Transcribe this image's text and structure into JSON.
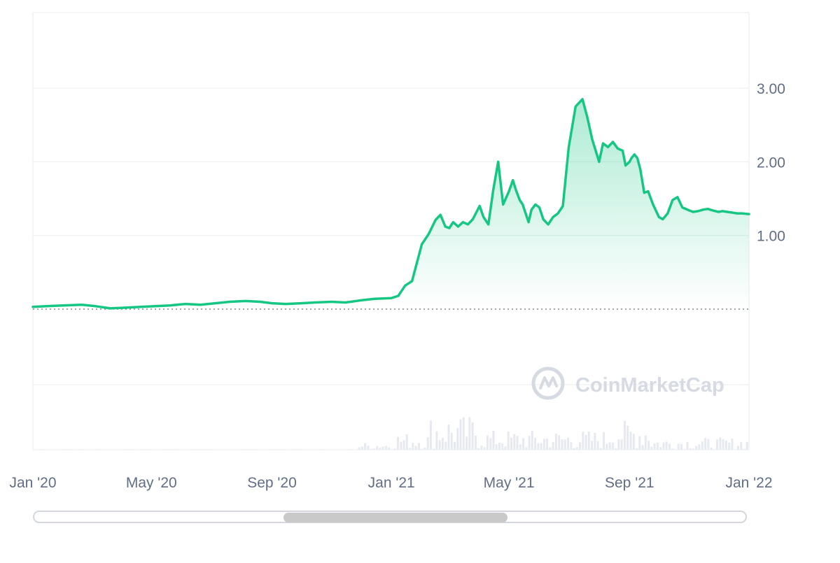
{
  "chart_data": {
    "type": "area",
    "title": "",
    "xlabel": "",
    "ylabel": "",
    "x_range": [
      "2020-01-01",
      "2022-01-01"
    ],
    "y_range": [
      -0.05,
      3.0
    ],
    "y_ticks": [
      1.0,
      2.0,
      3.0
    ],
    "y_tick_labels": [
      "1.00",
      "2.00",
      "3.00"
    ],
    "x_ticks": [
      "2020-01-01",
      "2020-05-01",
      "2020-09-01",
      "2021-01-01",
      "2021-05-01",
      "2021-09-01",
      "2022-01-01"
    ],
    "x_tick_labels": [
      "Jan '20",
      "May '20",
      "Sep '20",
      "Jan '21",
      "May '21",
      "Sep '21",
      "Jan '22"
    ],
    "baseline": 0.0,
    "grid": true,
    "colors": {
      "line": "#16c784",
      "fill": "#16c784",
      "baseline": "#616e85",
      "grid": "#eff2f5",
      "volume": "#e6eaf0"
    },
    "series": [
      {
        "x": [
          "2020-01-01",
          "2020-01-15",
          "2020-02-01",
          "2020-02-20",
          "2020-03-05",
          "2020-03-20",
          "2020-04-05",
          "2020-04-20",
          "2020-05-05",
          "2020-05-20",
          "2020-06-05",
          "2020-06-20",
          "2020-07-05",
          "2020-07-20",
          "2020-08-05",
          "2020-08-20",
          "2020-09-01",
          "2020-09-15",
          "2020-10-01",
          "2020-10-15",
          "2020-11-01",
          "2020-11-15",
          "2020-12-01",
          "2020-12-15",
          "2021-01-01",
          "2021-01-08",
          "2021-01-15",
          "2021-01-22",
          "2021-02-01",
          "2021-02-08",
          "2021-02-15",
          "2021-02-20",
          "2021-02-25",
          "2021-03-01",
          "2021-03-05",
          "2021-03-10",
          "2021-03-15",
          "2021-03-20",
          "2021-03-25",
          "2021-04-01",
          "2021-04-05",
          "2021-04-10",
          "2021-04-15",
          "2021-04-20",
          "2021-04-25",
          "2021-05-01",
          "2021-05-05",
          "2021-05-08",
          "2021-05-12",
          "2021-05-15",
          "2021-05-18",
          "2021-05-21",
          "2021-05-24",
          "2021-05-28",
          "2021-06-01",
          "2021-06-05",
          "2021-06-10",
          "2021-06-15",
          "2021-06-20",
          "2021-06-25",
          "2021-07-01",
          "2021-07-08",
          "2021-07-15",
          "2021-07-20",
          "2021-07-25",
          "2021-08-01",
          "2021-08-05",
          "2021-08-10",
          "2021-08-15",
          "2021-08-20",
          "2021-08-25",
          "2021-08-28",
          "2021-09-01",
          "2021-09-03",
          "2021-09-06",
          "2021-09-09",
          "2021-09-12",
          "2021-09-16",
          "2021-09-20",
          "2021-09-25",
          "2021-10-01",
          "2021-10-05",
          "2021-10-10",
          "2021-10-15",
          "2021-10-20",
          "2021-10-25",
          "2021-11-01",
          "2021-11-05",
          "2021-11-10",
          "2021-11-15",
          "2021-11-20",
          "2021-11-25",
          "2021-12-01",
          "2021-12-05",
          "2021-12-10",
          "2021-12-15",
          "2021-12-20",
          "2021-12-25",
          "2022-01-01"
        ],
        "y": [
          0.03,
          0.04,
          0.05,
          0.06,
          0.04,
          0.01,
          0.02,
          0.03,
          0.04,
          0.05,
          0.07,
          0.06,
          0.08,
          0.1,
          0.11,
          0.1,
          0.08,
          0.07,
          0.08,
          0.09,
          0.1,
          0.09,
          0.12,
          0.14,
          0.15,
          0.18,
          0.32,
          0.38,
          0.88,
          1.02,
          1.21,
          1.28,
          1.12,
          1.1,
          1.18,
          1.12,
          1.18,
          1.15,
          1.22,
          1.4,
          1.25,
          1.15,
          1.62,
          2.0,
          1.42,
          1.6,
          1.75,
          1.62,
          1.48,
          1.42,
          1.3,
          1.18,
          1.35,
          1.42,
          1.38,
          1.22,
          1.15,
          1.25,
          1.3,
          1.4,
          2.2,
          2.75,
          2.85,
          2.6,
          2.3,
          2.0,
          2.25,
          2.2,
          2.27,
          2.18,
          2.15,
          1.95,
          2.0,
          2.05,
          2.1,
          2.05,
          1.9,
          1.58,
          1.6,
          1.42,
          1.25,
          1.22,
          1.3,
          1.48,
          1.52,
          1.38,
          1.34,
          1.32,
          1.33,
          1.35,
          1.36,
          1.34,
          1.32,
          1.33,
          1.32,
          1.31,
          1.3,
          1.3,
          1.29
        ]
      }
    ]
  },
  "watermark": {
    "text": "CoinMarketCap",
    "icon": "coinmarketcap-logo-icon"
  },
  "scrollbar": {
    "thumb_start": 0.35,
    "thumb_end": 0.665
  }
}
